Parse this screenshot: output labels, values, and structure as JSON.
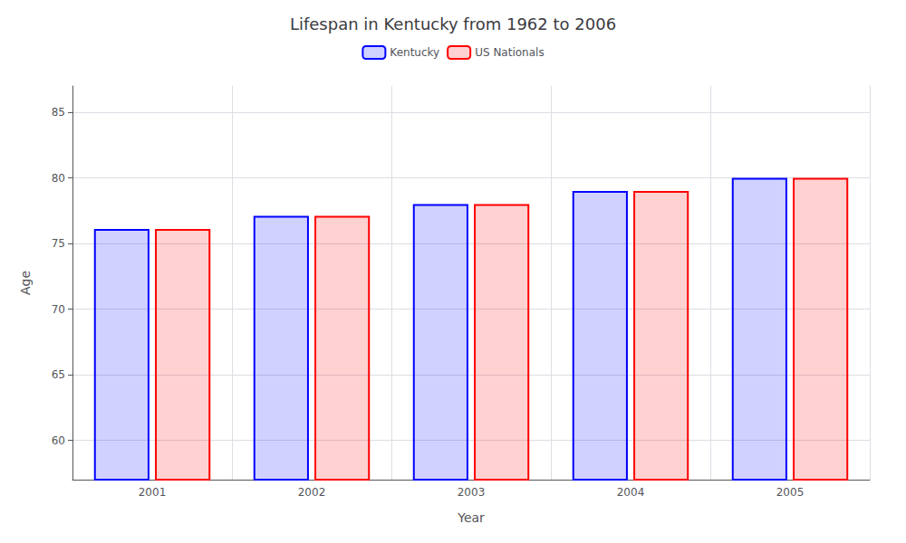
{
  "chart_data": {
    "type": "bar",
    "title": "Lifespan in Kentucky from 1962 to 2006",
    "xlabel": "Year",
    "ylabel": "Age",
    "categories": [
      "2001",
      "2002",
      "2003",
      "2004",
      "2005"
    ],
    "series": [
      {
        "name": "Kentucky",
        "color": "#0000ff",
        "values": [
          76.1,
          77.1,
          78.0,
          79.0,
          80.0
        ]
      },
      {
        "name": "US Nationals",
        "color": "#ff0000",
        "values": [
          76.1,
          77.1,
          78.0,
          79.0,
          80.0
        ]
      }
    ],
    "ylim": [
      57,
      87
    ],
    "yticks": [
      60,
      65,
      70,
      75,
      80,
      85
    ],
    "grid": true,
    "legend": "top"
  }
}
